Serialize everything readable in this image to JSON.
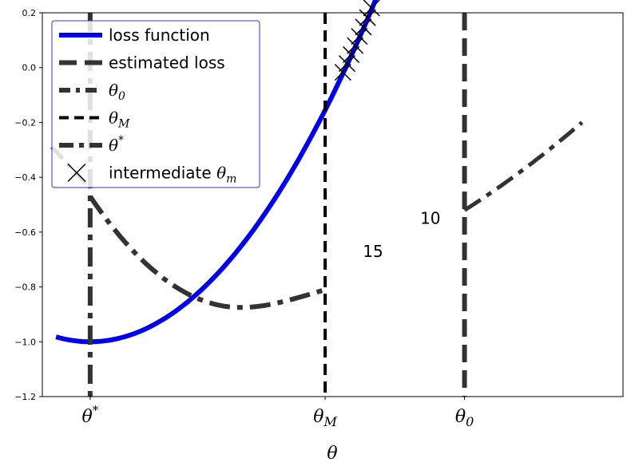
{
  "chart_data": {
    "type": "line",
    "title": "",
    "xlabel": "θ",
    "ylabel": "",
    "ylim": [
      -1.2,
      0.2
    ],
    "xlim": [
      -1.35,
      2.9
    ],
    "grid": false,
    "legend_position": "top-left",
    "y_ticks": [
      0.2,
      0.0,
      -0.2,
      -0.4,
      -0.6,
      -0.8,
      -1.0,
      -1.2
    ],
    "y_tick_labels": [
      "0.2",
      "0.0",
      "−0.2",
      "−0.4",
      "−0.6",
      "−0.8",
      "−1.0",
      "−1.2"
    ],
    "x_ticks": [
      {
        "x": -1.0,
        "label": "θ*"
      },
      {
        "x": 0.72,
        "label": "θM"
      },
      {
        "x": 1.74,
        "label": "θ0"
      }
    ],
    "series": [
      {
        "name": "loss function",
        "kind": "line",
        "style": "solid",
        "color": "#0000ee",
        "function": "y = (x+1)^2/3.5 - 1",
        "x_range": [
          -1.25,
          2.6
        ]
      },
      {
        "name": "estimated loss",
        "kind": "line",
        "style": "dashed",
        "color": "#333333"
      },
      {
        "name": "θ0",
        "kind": "vline",
        "style": "dashdot",
        "color": "#333333",
        "x": 1.74
      },
      {
        "name": "θM",
        "kind": "vline",
        "style": "dashed",
        "color": "#000000",
        "x": 0.72
      },
      {
        "name": "θ*",
        "kind": "vline",
        "style": "dashdot",
        "color": "#333333",
        "x": -1.0
      },
      {
        "name": "intermediate θm",
        "kind": "scatter",
        "marker": "x",
        "color": "#000000",
        "x": [
          0.85,
          0.88,
          0.91,
          0.94,
          0.97,
          1.0,
          1.03,
          1.06,
          1.2,
          1.25,
          1.55,
          1.58,
          1.61,
          1.64,
          1.67,
          1.7,
          1.73,
          1.76
        ]
      }
    ],
    "estimated_segments": [
      {
        "style": "dashdot",
        "from": [
          -1.0,
          -0.47
        ],
        "vertex": [
          0.1,
          -0.875
        ],
        "to": [
          0.72,
          -0.81
        ]
      },
      {
        "style": "dashdot",
        "from": [
          1.74,
          -0.52
        ],
        "to": [
          2.6,
          -0.2
        ]
      },
      {
        "style": "dashdot",
        "from": [
          -1.28,
          -0.29
        ],
        "to": [
          -1.0,
          -0.44
        ]
      }
    ],
    "annotations": [
      {
        "text": "10",
        "x": 1.49,
        "y": -0.57
      },
      {
        "text": "15",
        "x": 1.07,
        "y": -0.69
      }
    ],
    "legend": [
      {
        "label": "loss function",
        "math": ""
      },
      {
        "label": "estimated loss",
        "math": ""
      },
      {
        "label": "",
        "math": "θ",
        "sub": "0"
      },
      {
        "label": "",
        "math": "θ",
        "sub": "M"
      },
      {
        "label": "",
        "math": "θ",
        "sup": "*"
      },
      {
        "label": "intermediate ",
        "math": "θ",
        "sub": "m"
      }
    ]
  }
}
